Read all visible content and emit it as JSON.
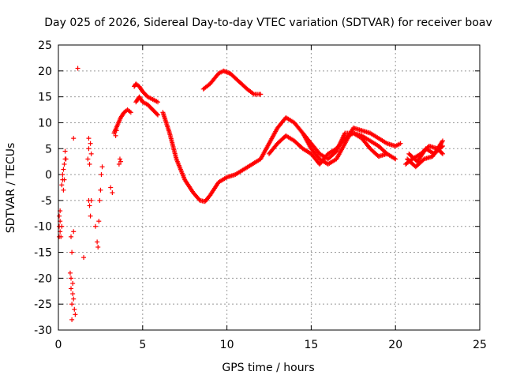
{
  "chart_data": {
    "type": "scatter",
    "title": "Day 025 of 2026, Sidereal Day-to-day VTEC variation (SDTVAR) for receiver boav",
    "xlabel": "GPS time / hours",
    "ylabel": "SDTVAR / TECUs",
    "xlim": [
      0,
      25
    ],
    "ylim": [
      -30,
      25
    ],
    "x_ticks": [
      0,
      5,
      10,
      15,
      20,
      25
    ],
    "y_ticks": [
      -30,
      -25,
      -20,
      -15,
      -10,
      -5,
      0,
      5,
      10,
      15,
      20,
      25
    ],
    "grid": true,
    "marker": "+",
    "color": "#ff0000",
    "series": [
      {
        "name": "scatter-sparse",
        "points": [
          [
            0.05,
            -8
          ],
          [
            0.05,
            -10
          ],
          [
            0.05,
            -12
          ],
          [
            0.1,
            -11
          ],
          [
            0.1,
            -9
          ],
          [
            0.1,
            -7
          ],
          [
            0.15,
            -12
          ],
          [
            0.2,
            -10
          ],
          [
            0.2,
            -2
          ],
          [
            0.25,
            -1
          ],
          [
            0.25,
            0
          ],
          [
            0.3,
            1
          ],
          [
            0.3,
            -3
          ],
          [
            0.35,
            2
          ],
          [
            0.35,
            -1
          ],
          [
            0.4,
            3
          ],
          [
            0.4,
            4.5
          ],
          [
            0.45,
            3
          ],
          [
            0.7,
            -19
          ],
          [
            0.75,
            -20
          ],
          [
            0.75,
            -22
          ],
          [
            0.8,
            -25
          ],
          [
            0.8,
            -28
          ],
          [
            0.85,
            -21
          ],
          [
            0.85,
            -23
          ],
          [
            0.9,
            -24
          ],
          [
            0.95,
            -26
          ],
          [
            1.0,
            -27
          ],
          [
            0.75,
            -12
          ],
          [
            0.8,
            -15
          ],
          [
            0.9,
            -11
          ],
          [
            0.9,
            7
          ],
          [
            1.15,
            20.5
          ],
          [
            1.5,
            -16
          ],
          [
            1.75,
            3
          ],
          [
            1.8,
            5
          ],
          [
            1.8,
            7
          ],
          [
            1.85,
            2
          ],
          [
            1.9,
            6
          ],
          [
            1.95,
            4
          ],
          [
            1.8,
            -5
          ],
          [
            1.85,
            -6
          ],
          [
            1.9,
            -8
          ],
          [
            1.95,
            -5
          ],
          [
            2.2,
            -10
          ],
          [
            2.3,
            -13
          ],
          [
            2.35,
            -14
          ],
          [
            2.4,
            -9
          ],
          [
            2.45,
            -5
          ],
          [
            2.5,
            -3
          ],
          [
            2.55,
            0
          ],
          [
            2.6,
            1.5
          ],
          [
            3.1,
            -2.5
          ],
          [
            3.2,
            -3.5
          ],
          [
            3.6,
            2
          ],
          [
            3.65,
            3
          ],
          [
            3.7,
            2.5
          ],
          [
            3.4,
            7.5
          ],
          [
            3.45,
            8.5
          ]
        ]
      },
      {
        "name": "arc-a",
        "points": [
          [
            3.3,
            8
          ],
          [
            3.5,
            9.5
          ],
          [
            3.7,
            11
          ],
          [
            3.9,
            12
          ],
          [
            4.1,
            12.5
          ],
          [
            4.3,
            12
          ]
        ]
      },
      {
        "name": "arc-b",
        "points": [
          [
            4.5,
            17
          ],
          [
            4.6,
            17.5
          ],
          [
            4.8,
            17
          ],
          [
            5.0,
            16
          ],
          [
            5.3,
            15
          ],
          [
            5.6,
            14.5
          ],
          [
            5.9,
            14
          ]
        ]
      },
      {
        "name": "arc-c",
        "points": [
          [
            4.6,
            14
          ],
          [
            4.8,
            15
          ],
          [
            5.0,
            14
          ],
          [
            5.3,
            13.5
          ],
          [
            5.6,
            12.5
          ],
          [
            5.9,
            11.5
          ]
        ]
      },
      {
        "name": "main-curve",
        "points": [
          [
            6.2,
            12
          ],
          [
            6.6,
            8
          ],
          [
            7.0,
            3
          ],
          [
            7.5,
            -1
          ],
          [
            8.0,
            -3.5
          ],
          [
            8.4,
            -5
          ],
          [
            8.7,
            -5.2
          ],
          [
            9.0,
            -4
          ],
          [
            9.5,
            -1.5
          ],
          [
            10.0,
            -0.5
          ],
          [
            10.5,
            0
          ],
          [
            11.0,
            1
          ],
          [
            11.5,
            2
          ],
          [
            12.0,
            3
          ],
          [
            12.5,
            6
          ],
          [
            13.0,
            9
          ],
          [
            13.5,
            11
          ],
          [
            14.0,
            10
          ],
          [
            14.5,
            8
          ],
          [
            15.0,
            5
          ],
          [
            15.5,
            3
          ],
          [
            16.0,
            2
          ],
          [
            16.5,
            3
          ],
          [
            17.0,
            6
          ],
          [
            17.5,
            9
          ],
          [
            18.0,
            8.5
          ],
          [
            18.5,
            8
          ],
          [
            19.0,
            7
          ],
          [
            19.5,
            6
          ],
          [
            20.0,
            5.5
          ],
          [
            20.3,
            6
          ]
        ]
      },
      {
        "name": "lower-curve",
        "points": [
          [
            12.5,
            4
          ],
          [
            13.0,
            6
          ],
          [
            13.5,
            7.5
          ],
          [
            14.0,
            6.5
          ],
          [
            14.5,
            5
          ],
          [
            15.0,
            4
          ],
          [
            15.5,
            2
          ],
          [
            16.0,
            4
          ],
          [
            16.5,
            5
          ],
          [
            17.0,
            7
          ],
          [
            17.5,
            8
          ],
          [
            18.0,
            7
          ],
          [
            18.5,
            5
          ],
          [
            19.0,
            3.5
          ],
          [
            19.5,
            4
          ],
          [
            20.0,
            3
          ]
        ]
      },
      {
        "name": "mid-curve",
        "points": [
          [
            14.5,
            8
          ],
          [
            15.0,
            6
          ],
          [
            15.5,
            4
          ],
          [
            16.0,
            3
          ],
          [
            16.5,
            4.5
          ],
          [
            17.0,
            8
          ],
          [
            17.5,
            8
          ],
          [
            18.0,
            7.5
          ],
          [
            18.5,
            6.5
          ],
          [
            19.0,
            5.5
          ],
          [
            19.5,
            4
          ]
        ]
      },
      {
        "name": "arc-top",
        "points": [
          [
            8.6,
            16.5
          ],
          [
            9.0,
            17.5
          ],
          [
            9.5,
            19.5
          ],
          [
            9.8,
            20
          ],
          [
            10.2,
            19.5
          ],
          [
            10.7,
            18
          ],
          [
            11.2,
            16.5
          ],
          [
            11.6,
            15.5
          ],
          [
            12.0,
            15.5
          ]
        ]
      },
      {
        "name": "right-a",
        "points": [
          [
            20.6,
            2
          ],
          [
            21.0,
            3
          ],
          [
            21.5,
            4
          ],
          [
            22.0,
            5.5
          ],
          [
            22.5,
            5
          ],
          [
            22.8,
            4
          ]
        ]
      },
      {
        "name": "right-b",
        "points": [
          [
            20.7,
            3
          ],
          [
            21.2,
            1.5
          ],
          [
            21.7,
            3
          ],
          [
            22.2,
            3.5
          ],
          [
            22.8,
            6.5
          ]
        ]
      },
      {
        "name": "right-c",
        "points": [
          [
            20.8,
            4
          ],
          [
            21.3,
            2.5
          ],
          [
            21.8,
            5
          ],
          [
            22.3,
            4
          ],
          [
            22.8,
            5.5
          ]
        ]
      }
    ]
  }
}
